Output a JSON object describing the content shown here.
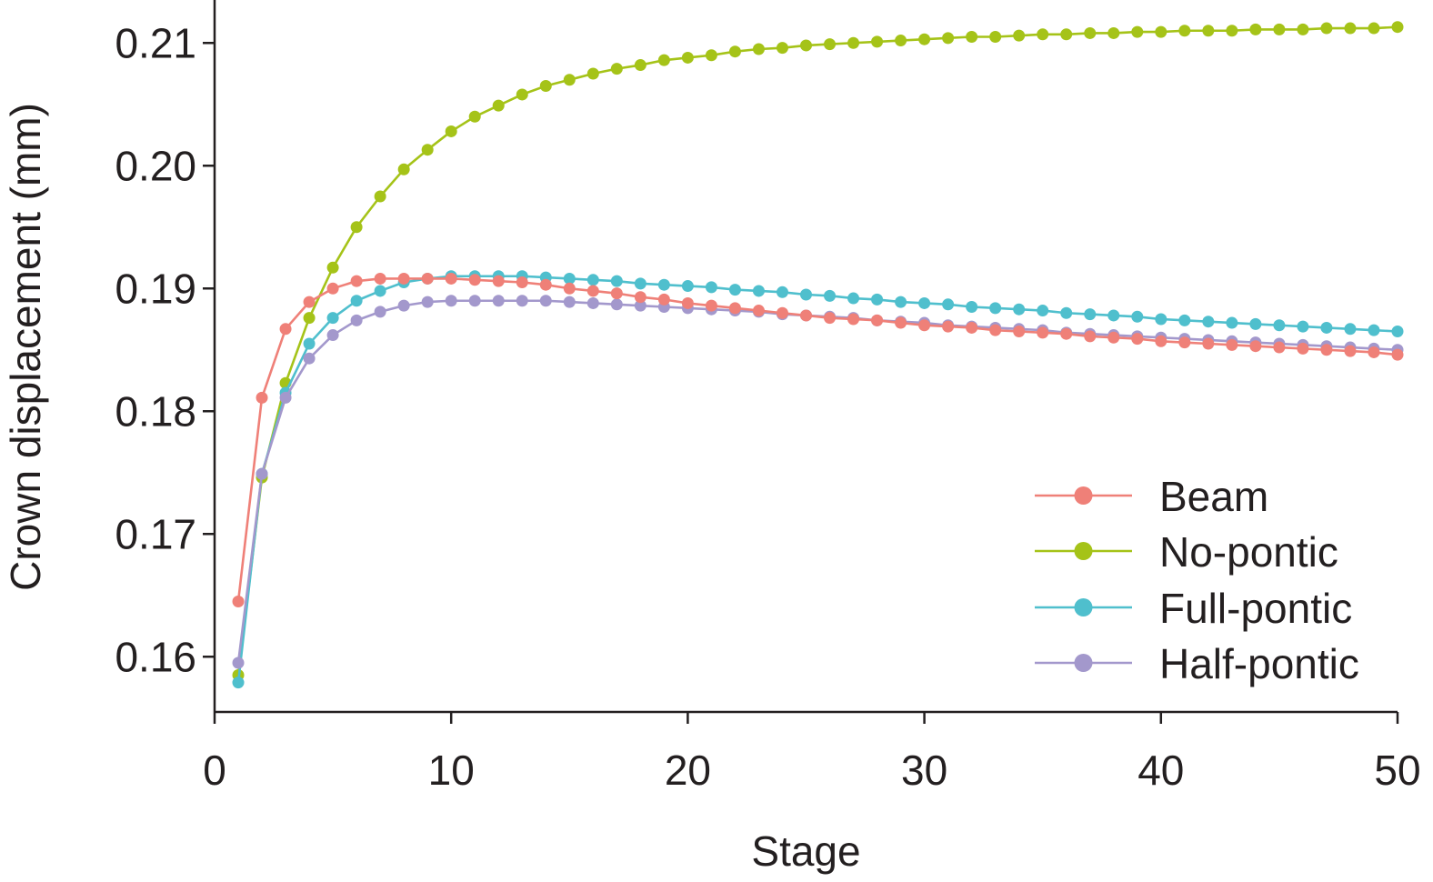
{
  "chart_data": {
    "type": "line",
    "title": "",
    "xlabel": "Stage",
    "ylabel": "Crown displacement (mm)",
    "xlim": [
      0,
      50
    ],
    "ylim": [
      0.1555,
      0.2135
    ],
    "xticks": [
      0,
      10,
      20,
      30,
      40,
      50
    ],
    "xtick_labels": [
      "0",
      "10",
      "20",
      "30",
      "40",
      "50"
    ],
    "yticks": [
      0.16,
      0.17,
      0.18,
      0.19,
      0.2,
      0.21
    ],
    "ytick_labels": [
      "0.16",
      "0.17",
      "0.18",
      "0.19",
      "0.20",
      "0.21"
    ],
    "grid": false,
    "legend_position": "bottom-right",
    "x": [
      1,
      2,
      3,
      4,
      5,
      6,
      7,
      8,
      9,
      10,
      11,
      12,
      13,
      14,
      15,
      16,
      17,
      18,
      19,
      20,
      21,
      22,
      23,
      24,
      25,
      26,
      27,
      28,
      29,
      30,
      31,
      32,
      33,
      34,
      35,
      36,
      37,
      38,
      39,
      40,
      41,
      42,
      43,
      44,
      45,
      46,
      47,
      48,
      49,
      50
    ],
    "series": [
      {
        "name": "Beam",
        "color": "#ef8078",
        "values": [
          0.1645,
          0.1811,
          0.1867,
          0.1889,
          0.19,
          0.1906,
          0.1908,
          0.1908,
          0.1908,
          0.1908,
          0.1907,
          0.1906,
          0.1905,
          0.1903,
          0.19,
          0.1898,
          0.1896,
          0.1893,
          0.1891,
          0.1888,
          0.1886,
          0.1884,
          0.1882,
          0.188,
          0.1878,
          0.1876,
          0.1875,
          0.1874,
          0.1872,
          0.187,
          0.1869,
          0.1868,
          0.1866,
          0.1865,
          0.1864,
          0.1863,
          0.1861,
          0.186,
          0.1859,
          0.1857,
          0.1856,
          0.1855,
          0.1854,
          0.1853,
          0.1852,
          0.1851,
          0.185,
          0.1849,
          0.1848,
          0.1846
        ]
      },
      {
        "name": "No-pontic",
        "color": "#a5c318",
        "values": [
          0.1585,
          0.1746,
          0.1823,
          0.1876,
          0.1917,
          0.195,
          0.1975,
          0.1997,
          0.2013,
          0.2028,
          0.204,
          0.2049,
          0.2058,
          0.2065,
          0.207,
          0.2075,
          0.2079,
          0.2082,
          0.2086,
          0.2088,
          0.209,
          0.2093,
          0.2095,
          0.2096,
          0.2098,
          0.2099,
          0.21,
          0.2101,
          0.2102,
          0.2103,
          0.2104,
          0.2105,
          0.2105,
          0.2106,
          0.2107,
          0.2107,
          0.2108,
          0.2108,
          0.2109,
          0.2109,
          0.211,
          0.211,
          0.211,
          0.2111,
          0.2111,
          0.2111,
          0.2112,
          0.2112,
          0.2112,
          0.2113
        ]
      },
      {
        "name": "Full-pontic",
        "color": "#4fbfcd",
        "values": [
          0.1579,
          0.1749,
          0.1815,
          0.1855,
          0.1876,
          0.189,
          0.1898,
          0.1905,
          0.1908,
          0.191,
          0.191,
          0.191,
          0.191,
          0.1909,
          0.1908,
          0.1907,
          0.1906,
          0.1904,
          0.1903,
          0.1902,
          0.1901,
          0.1899,
          0.1898,
          0.1897,
          0.1895,
          0.1894,
          0.1892,
          0.1891,
          0.1889,
          0.1888,
          0.1887,
          0.1885,
          0.1884,
          0.1883,
          0.1882,
          0.188,
          0.1879,
          0.1878,
          0.1877,
          0.1875,
          0.1874,
          0.1873,
          0.1872,
          0.1871,
          0.187,
          0.1869,
          0.1868,
          0.1867,
          0.1866,
          0.1865
        ]
      },
      {
        "name": "Half-pontic",
        "color": "#a398cc",
        "values": [
          0.1595,
          0.1749,
          0.1811,
          0.1843,
          0.1862,
          0.1874,
          0.1881,
          0.1886,
          0.1889,
          0.189,
          0.189,
          0.189,
          0.189,
          0.189,
          0.1889,
          0.1888,
          0.1887,
          0.1886,
          0.1885,
          0.1884,
          0.1883,
          0.1882,
          0.1881,
          0.1879,
          0.1878,
          0.1877,
          0.1876,
          0.1874,
          0.1873,
          0.1872,
          0.187,
          0.1869,
          0.1868,
          0.1867,
          0.1866,
          0.1864,
          0.1863,
          0.1862,
          0.1861,
          0.186,
          0.1859,
          0.1858,
          0.1857,
          0.1856,
          0.1855,
          0.1854,
          0.1853,
          0.1852,
          0.1851,
          0.185
        ]
      }
    ]
  }
}
